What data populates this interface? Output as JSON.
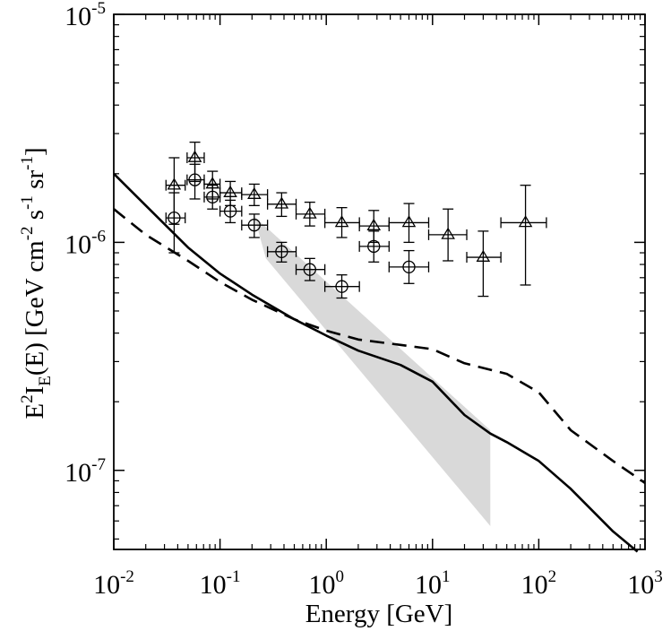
{
  "chart_data": {
    "type": "scatter",
    "title": "",
    "xlabel": "Energy [GeV]",
    "ylabel_parts": {
      "base": "E",
      "exp": "2",
      "i": "I",
      "sub": "E",
      "rest": "(E) [GeV cm",
      "exp_cm": "-2",
      "s": " s",
      "exp_s": "-1",
      "sr": " sr",
      "exp_sr": "-1",
      "close": "]"
    },
    "xscale": "log",
    "yscale": "log",
    "xlim": [
      0.01,
      1000
    ],
    "ylim": [
      4.5e-08,
      1e-05
    ],
    "xticks": [
      {
        "value": 0.01,
        "base": "10",
        "exp": "-2"
      },
      {
        "value": 0.1,
        "base": "10",
        "exp": "-1"
      },
      {
        "value": 1,
        "base": "10",
        "exp": "0"
      },
      {
        "value": 10,
        "base": "10",
        "exp": "1"
      },
      {
        "value": 100,
        "base": "10",
        "exp": "2"
      },
      {
        "value": 1000,
        "base": "10",
        "exp": "3"
      }
    ],
    "yticks": [
      {
        "value": 1e-07,
        "base": "10",
        "exp": "-7"
      },
      {
        "value": 1e-06,
        "base": "10",
        "exp": "-6"
      },
      {
        "value": 1e-05,
        "base": "10",
        "exp": "-5"
      }
    ],
    "grid": false,
    "legend": "none",
    "band": {
      "color": "#d9d9d9",
      "upper": [
        [
          0.21,
          1.3e-06
        ],
        [
          35,
          1.5e-07
        ]
      ],
      "lower": [
        [
          0.27,
          8.5e-07
        ],
        [
          35,
          5.7e-08
        ]
      ]
    },
    "series": [
      {
        "marker": "triangle",
        "points": [
          {
            "x": 0.037,
            "y": 1.78e-06,
            "xerr": [
              0.031,
              0.047
            ],
            "yerr": [
              1.2e-06,
              2.35e-06
            ]
          },
          {
            "x": 0.058,
            "y": 2.35e-06,
            "xerr": [
              0.049,
              0.071
            ],
            "yerr": [
              1.85e-06,
              2.75e-06
            ]
          },
          {
            "x": 0.085,
            "y": 1.8e-06,
            "xerr": [
              0.071,
              0.1
            ],
            "yerr": [
              1.55e-06,
              2.05e-06
            ]
          },
          {
            "x": 0.125,
            "y": 1.65e-06,
            "xerr": [
              0.1,
              0.16
            ],
            "yerr": [
              1.45e-06,
              1.85e-06
            ]
          },
          {
            "x": 0.21,
            "y": 1.62e-06,
            "xerr": [
              0.16,
              0.28
            ],
            "yerr": [
              1.45e-06,
              1.8e-06
            ]
          },
          {
            "x": 0.38,
            "y": 1.47e-06,
            "xerr": [
              0.28,
              0.52
            ],
            "yerr": [
              1.3e-06,
              1.65e-06
            ]
          },
          {
            "x": 0.7,
            "y": 1.33e-06,
            "xerr": [
              0.52,
              0.97
            ],
            "yerr": [
              1.18e-06,
              1.5e-06
            ]
          },
          {
            "x": 1.4,
            "y": 1.22e-06,
            "xerr": [
              0.97,
              2.05
            ],
            "yerr": [
              1.05e-06,
              1.42e-06
            ]
          },
          {
            "x": 2.8,
            "y": 1.18e-06,
            "xerr": [
              2.05,
              3.9
            ],
            "yerr": [
              1e-06,
              1.38e-06
            ]
          },
          {
            "x": 6.0,
            "y": 1.22e-06,
            "xerr": [
              3.9,
              9.2
            ],
            "yerr": [
              1e-06,
              1.48e-06
            ]
          },
          {
            "x": 14,
            "y": 1.08e-06,
            "xerr": [
              9.2,
              21
            ],
            "yerr": [
              8.3e-07,
              1.4e-06
            ]
          },
          {
            "x": 30,
            "y": 8.6e-07,
            "xerr": [
              21,
              44
            ],
            "yerr": [
              5.8e-07,
              1.12e-06
            ]
          },
          {
            "x": 75,
            "y": 1.22e-06,
            "xerr": [
              44,
              118
            ],
            "yerr": [
              6.5e-07,
              1.78e-06
            ]
          }
        ]
      },
      {
        "marker": "circle",
        "points": [
          {
            "x": 0.037,
            "y": 1.28e-06,
            "xerr": [
              0.031,
              0.047
            ],
            "yerr": [
              9e-07,
              1.65e-06
            ]
          },
          {
            "x": 0.058,
            "y": 1.88e-06,
            "xerr": [
              0.049,
              0.071
            ],
            "yerr": [
              1.55e-06,
              2.2e-06
            ]
          },
          {
            "x": 0.085,
            "y": 1.58e-06,
            "xerr": [
              0.071,
              0.1
            ],
            "yerr": [
              1.4e-06,
              1.78e-06
            ]
          },
          {
            "x": 0.125,
            "y": 1.37e-06,
            "xerr": [
              0.1,
              0.16
            ],
            "yerr": [
              1.22e-06,
              1.53e-06
            ]
          },
          {
            "x": 0.21,
            "y": 1.19e-06,
            "xerr": [
              0.16,
              0.28
            ],
            "yerr": [
              1.05e-06,
              1.33e-06
            ]
          },
          {
            "x": 0.38,
            "y": 9.1e-07,
            "xerr": [
              0.28,
              0.52
            ],
            "yerr": [
              8.2e-07,
              1e-06
            ]
          },
          {
            "x": 0.7,
            "y": 7.6e-07,
            "xerr": [
              0.52,
              0.97
            ],
            "yerr": [
              6.8e-07,
              8.5e-07
            ]
          },
          {
            "x": 1.4,
            "y": 6.4e-07,
            "xerr": [
              0.97,
              2.05
            ],
            "yerr": [
              5.7e-07,
              7.2e-07
            ]
          },
          {
            "x": 2.8,
            "y": 9.6e-07,
            "xerr": [
              2.05,
              3.9
            ],
            "yerr": [
              8.2e-07,
              1.12e-06
            ]
          },
          {
            "x": 6.0,
            "y": 7.8e-07,
            "xerr": [
              3.9,
              9.2
            ],
            "yerr": [
              6.6e-07,
              9.2e-07
            ]
          }
        ]
      },
      {
        "line": "solid",
        "points": [
          [
            0.01,
            2e-06
          ],
          [
            0.02,
            1.45e-06
          ],
          [
            0.05,
            9.5e-07
          ],
          [
            0.1,
            7.3e-07
          ],
          [
            0.2,
            5.9e-07
          ],
          [
            0.5,
            4.6e-07
          ],
          [
            1,
            3.9e-07
          ],
          [
            2,
            3.35e-07
          ],
          [
            5,
            2.9e-07
          ],
          [
            10,
            2.45e-07
          ],
          [
            20,
            1.75e-07
          ],
          [
            35,
            1.45e-07
          ],
          [
            50,
            1.33e-07
          ],
          [
            100,
            1.1e-07
          ],
          [
            200,
            8.3e-08
          ],
          [
            500,
            5.4e-08
          ],
          [
            850,
            4.4e-08
          ]
        ]
      },
      {
        "line": "dashed",
        "points": [
          [
            0.01,
            1.4e-06
          ],
          [
            0.02,
            1.08e-06
          ],
          [
            0.05,
            8.3e-07
          ],
          [
            0.1,
            6.7e-07
          ],
          [
            0.2,
            5.6e-07
          ],
          [
            0.5,
            4.6e-07
          ],
          [
            1,
            4.1e-07
          ],
          [
            2,
            3.75e-07
          ],
          [
            5,
            3.55e-07
          ],
          [
            10,
            3.4e-07
          ],
          [
            20,
            2.95e-07
          ],
          [
            50,
            2.65e-07
          ],
          [
            100,
            2.2e-07
          ],
          [
            200,
            1.5e-07
          ],
          [
            500,
            1.1e-07
          ],
          [
            1000,
            8.8e-08
          ]
        ]
      }
    ]
  }
}
